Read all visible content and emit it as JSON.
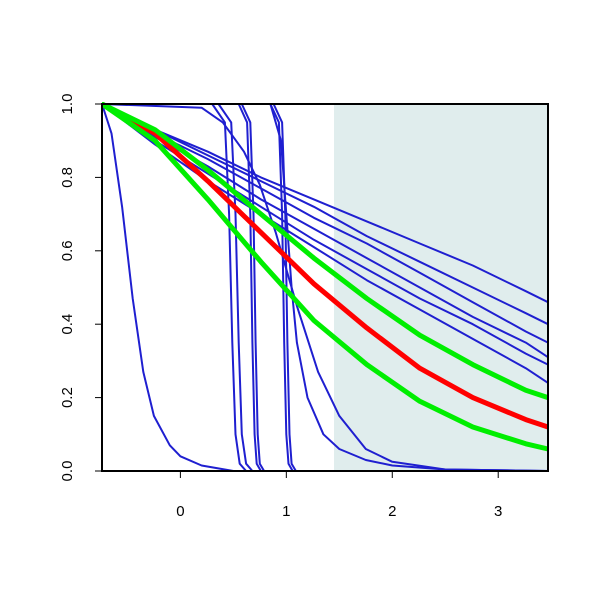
{
  "chart_data": {
    "type": "line",
    "xlim": [
      -0.74,
      3.47
    ],
    "ylim": [
      0,
      1
    ],
    "xticks": [
      0,
      1,
      2,
      3
    ],
    "yticks": [
      {
        "value": 0,
        "label": "0.0"
      },
      0.2,
      0.4,
      0.6,
      0.8,
      {
        "value": 1,
        "label": "1.0"
      }
    ],
    "shaded_region": [
      1.45,
      3.47
    ],
    "shade_color": "#e0eded",
    "series": [
      {
        "color": "#1f1fd0",
        "x": [
          -0.74,
          -0.24,
          0.26,
          0.76,
          1.26,
          1.76,
          2.26,
          2.76,
          3.26,
          3.47
        ],
        "values": [
          1,
          0.93,
          0.87,
          0.8,
          0.74,
          0.68,
          0.62,
          0.56,
          0.49,
          0.46
        ]
      },
      {
        "color": "#1f1fd0",
        "x": [
          -0.74,
          -0.24,
          0.26,
          0.76,
          1.26,
          1.76,
          2.26,
          2.76,
          3.26,
          3.47
        ],
        "values": [
          1,
          0.93,
          0.86,
          0.79,
          0.72,
          0.64,
          0.57,
          0.5,
          0.43,
          0.4
        ]
      },
      {
        "color": "#1f1fd0",
        "x": [
          -0.74,
          -0.24,
          0.26,
          0.76,
          1.26,
          1.76,
          2.26,
          2.76,
          3.26,
          3.47
        ],
        "values": [
          1,
          0.92,
          0.85,
          0.77,
          0.69,
          0.62,
          0.54,
          0.46,
          0.38,
          0.35
        ]
      },
      {
        "color": "#1f1fd0",
        "x": [
          -0.74,
          -0.24,
          0.26,
          0.76,
          1.26,
          1.76,
          2.26,
          2.76,
          3.26,
          3.47
        ],
        "values": [
          1,
          0.91,
          0.83,
          0.74,
          0.66,
          0.58,
          0.5,
          0.42,
          0.35,
          0.31
        ]
      },
      {
        "color": "#1f1fd0",
        "x": [
          -0.74,
          -0.24,
          0.26,
          0.76,
          1.26,
          1.76,
          2.26,
          2.76,
          3.26,
          3.47
        ],
        "values": [
          1,
          0.9,
          0.81,
          0.72,
          0.63,
          0.55,
          0.47,
          0.4,
          0.32,
          0.29
        ]
      },
      {
        "color": "#1f1fd0",
        "x": [
          -0.74,
          -0.24,
          0.26,
          0.76,
          1.26,
          1.76,
          2.26,
          2.76,
          3.26,
          3.47
        ],
        "values": [
          1,
          0.89,
          0.79,
          0.7,
          0.61,
          0.52,
          0.44,
          0.36,
          0.28,
          0.24
        ]
      },
      {
        "color": "#1f1fd0",
        "x": [
          -0.74,
          -0.65,
          -0.55,
          -0.45,
          -0.35,
          -0.25,
          -0.1,
          0,
          0.2,
          0.5,
          3.47
        ],
        "values": [
          1,
          0.92,
          0.72,
          0.47,
          0.27,
          0.15,
          0.07,
          0.04,
          0.015,
          0,
          0
        ]
      },
      {
        "color": "#1f1fd0",
        "x": [
          -0.74,
          0.3,
          0.42,
          0.46,
          0.49,
          0.52,
          0.56,
          0.62,
          3.47
        ],
        "values": [
          1,
          1,
          0.95,
          0.7,
          0.35,
          0.1,
          0.02,
          0,
          0
        ]
      },
      {
        "color": "#1f1fd0",
        "x": [
          -0.74,
          0.36,
          0.48,
          0.52,
          0.55,
          0.58,
          0.62,
          0.68,
          3.47
        ],
        "values": [
          1,
          1,
          0.95,
          0.7,
          0.35,
          0.1,
          0.02,
          0,
          0
        ]
      },
      {
        "color": "#1f1fd0",
        "x": [
          -0.74,
          0.55,
          0.63,
          0.66,
          0.68,
          0.7,
          0.72,
          0.76,
          3.47
        ],
        "values": [
          1,
          1,
          0.95,
          0.7,
          0.35,
          0.1,
          0.02,
          0,
          0
        ]
      },
      {
        "color": "#1f1fd0",
        "x": [
          -0.74,
          0.58,
          0.66,
          0.69,
          0.71,
          0.73,
          0.75,
          0.79,
          3.47
        ],
        "values": [
          1,
          1,
          0.95,
          0.7,
          0.35,
          0.1,
          0.02,
          0,
          0
        ]
      },
      {
        "color": "#1f1fd0",
        "x": [
          -0.74,
          0.85,
          0.93,
          0.96,
          0.98,
          1,
          1.02,
          1.06,
          3.47
        ],
        "values": [
          1,
          1,
          0.95,
          0.7,
          0.35,
          0.1,
          0.02,
          0,
          0
        ]
      },
      {
        "color": "#1f1fd0",
        "x": [
          -0.74,
          0.88,
          0.96,
          0.99,
          1.01,
          1.03,
          1.05,
          1.09,
          3.47
        ],
        "values": [
          1,
          1,
          0.95,
          0.7,
          0.35,
          0.1,
          0.02,
          0,
          0
        ]
      },
      {
        "color": "#1f1fd0",
        "x": [
          -0.74,
          0.85,
          0.95,
          1,
          1.05,
          1.1,
          1.2,
          1.35,
          1.5,
          1.75,
          2,
          2.5,
          3.47
        ],
        "values": [
          1,
          1,
          0.9,
          0.7,
          0.5,
          0.35,
          0.2,
          0.1,
          0.06,
          0.03,
          0.015,
          0.004,
          0
        ]
      },
      {
        "color": "#1f1fd0",
        "x": [
          -0.74,
          0.2,
          0.4,
          0.6,
          0.75,
          0.9,
          1.1,
          1.3,
          1.5,
          1.75,
          2,
          2.5,
          3.47
        ],
        "values": [
          1,
          0.99,
          0.95,
          0.87,
          0.78,
          0.65,
          0.45,
          0.27,
          0.15,
          0.06,
          0.025,
          0.004,
          0
        ]
      },
      {
        "color": "#ff0000",
        "width": 5,
        "x": [
          -0.74,
          -0.24,
          0.26,
          0.76,
          1.26,
          1.76,
          2.26,
          2.76,
          3.26,
          3.47
        ],
        "values": [
          1,
          0.92,
          0.79,
          0.65,
          0.51,
          0.39,
          0.28,
          0.2,
          0.14,
          0.12
        ]
      },
      {
        "color": "#00ee00",
        "width": 5,
        "x": [
          -0.74,
          -0.24,
          0.26,
          0.76,
          1.26,
          1.76,
          2.26,
          2.76,
          3.26,
          3.47
        ],
        "values": [
          1,
          0.93,
          0.82,
          0.7,
          0.58,
          0.47,
          0.37,
          0.29,
          0.22,
          0.2
        ]
      },
      {
        "color": "#00ee00",
        "width": 5,
        "x": [
          -0.74,
          -0.24,
          0.26,
          0.76,
          1.26,
          1.76,
          2.26,
          2.76,
          3.26,
          3.47
        ],
        "values": [
          1,
          0.9,
          0.74,
          0.57,
          0.41,
          0.29,
          0.19,
          0.12,
          0.074,
          0.06
        ]
      }
    ]
  }
}
